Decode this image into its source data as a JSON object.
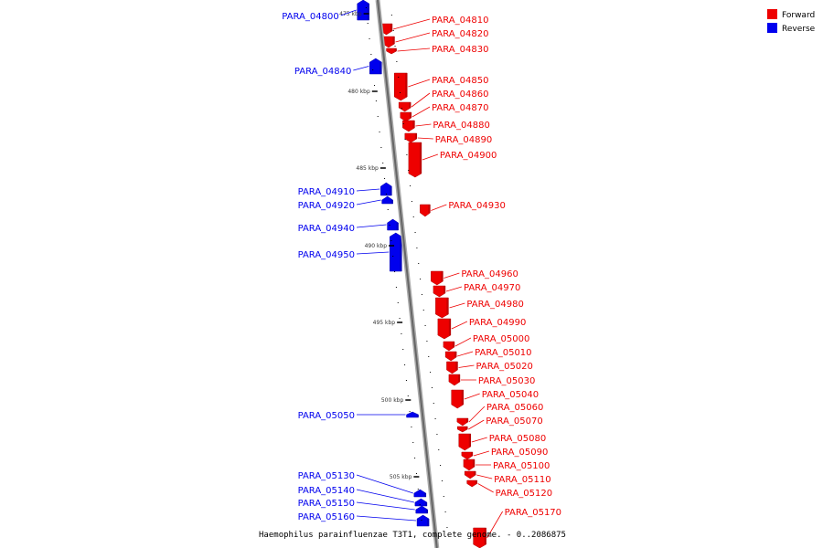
{
  "title": "Haemophilus parainfluenzae T3T1, complete genome. - 0..2086875",
  "legend": [
    {
      "label": "Forward",
      "color": "#ee0000"
    },
    {
      "label": "Reverse",
      "color": "#0000ee"
    }
  ],
  "scale_ticks": [
    "475 kbp",
    "480 kbp",
    "485 kbp",
    "490 kbp",
    "495 kbp",
    "500 kbp",
    "505 kbp"
  ],
  "genes": [
    {
      "label": "PARA_04800",
      "strand": "reverse"
    },
    {
      "label": "PARA_04810",
      "strand": "forward"
    },
    {
      "label": "PARA_04820",
      "strand": "forward"
    },
    {
      "label": "PARA_04830",
      "strand": "forward"
    },
    {
      "label": "PARA_04840",
      "strand": "reverse"
    },
    {
      "label": "PARA_04850",
      "strand": "forward"
    },
    {
      "label": "PARA_04860",
      "strand": "forward"
    },
    {
      "label": "PARA_04870",
      "strand": "forward"
    },
    {
      "label": "PARA_04880",
      "strand": "forward"
    },
    {
      "label": "PARA_04890",
      "strand": "forward"
    },
    {
      "label": "PARA_04900",
      "strand": "forward"
    },
    {
      "label": "PARA_04910",
      "strand": "reverse"
    },
    {
      "label": "PARA_04920",
      "strand": "reverse"
    },
    {
      "label": "PARA_04930",
      "strand": "forward"
    },
    {
      "label": "PARA_04940",
      "strand": "reverse"
    },
    {
      "label": "PARA_04950",
      "strand": "reverse"
    },
    {
      "label": "PARA_04960",
      "strand": "forward"
    },
    {
      "label": "PARA_04970",
      "strand": "forward"
    },
    {
      "label": "PARA_04980",
      "strand": "forward"
    },
    {
      "label": "PARA_04990",
      "strand": "forward"
    },
    {
      "label": "PARA_05000",
      "strand": "forward"
    },
    {
      "label": "PARA_05010",
      "strand": "forward"
    },
    {
      "label": "PARA_05020",
      "strand": "forward"
    },
    {
      "label": "PARA_05030",
      "strand": "forward"
    },
    {
      "label": "PARA_05040",
      "strand": "forward"
    },
    {
      "label": "PARA_05050",
      "strand": "reverse"
    },
    {
      "label": "PARA_05060",
      "strand": "forward"
    },
    {
      "label": "PARA_05070",
      "strand": "forward"
    },
    {
      "label": "PARA_05080",
      "strand": "forward"
    },
    {
      "label": "PARA_05090",
      "strand": "forward"
    },
    {
      "label": "PARA_05100",
      "strand": "forward"
    },
    {
      "label": "PARA_05110",
      "strand": "forward"
    },
    {
      "label": "PARA_05120",
      "strand": "forward"
    },
    {
      "label": "PARA_05130",
      "strand": "reverse"
    },
    {
      "label": "PARA_05140",
      "strand": "reverse"
    },
    {
      "label": "PARA_05150",
      "strand": "reverse"
    },
    {
      "label": "PARA_05160",
      "strand": "reverse"
    },
    {
      "label": "PARA_05170",
      "strand": "forward"
    }
  ]
}
